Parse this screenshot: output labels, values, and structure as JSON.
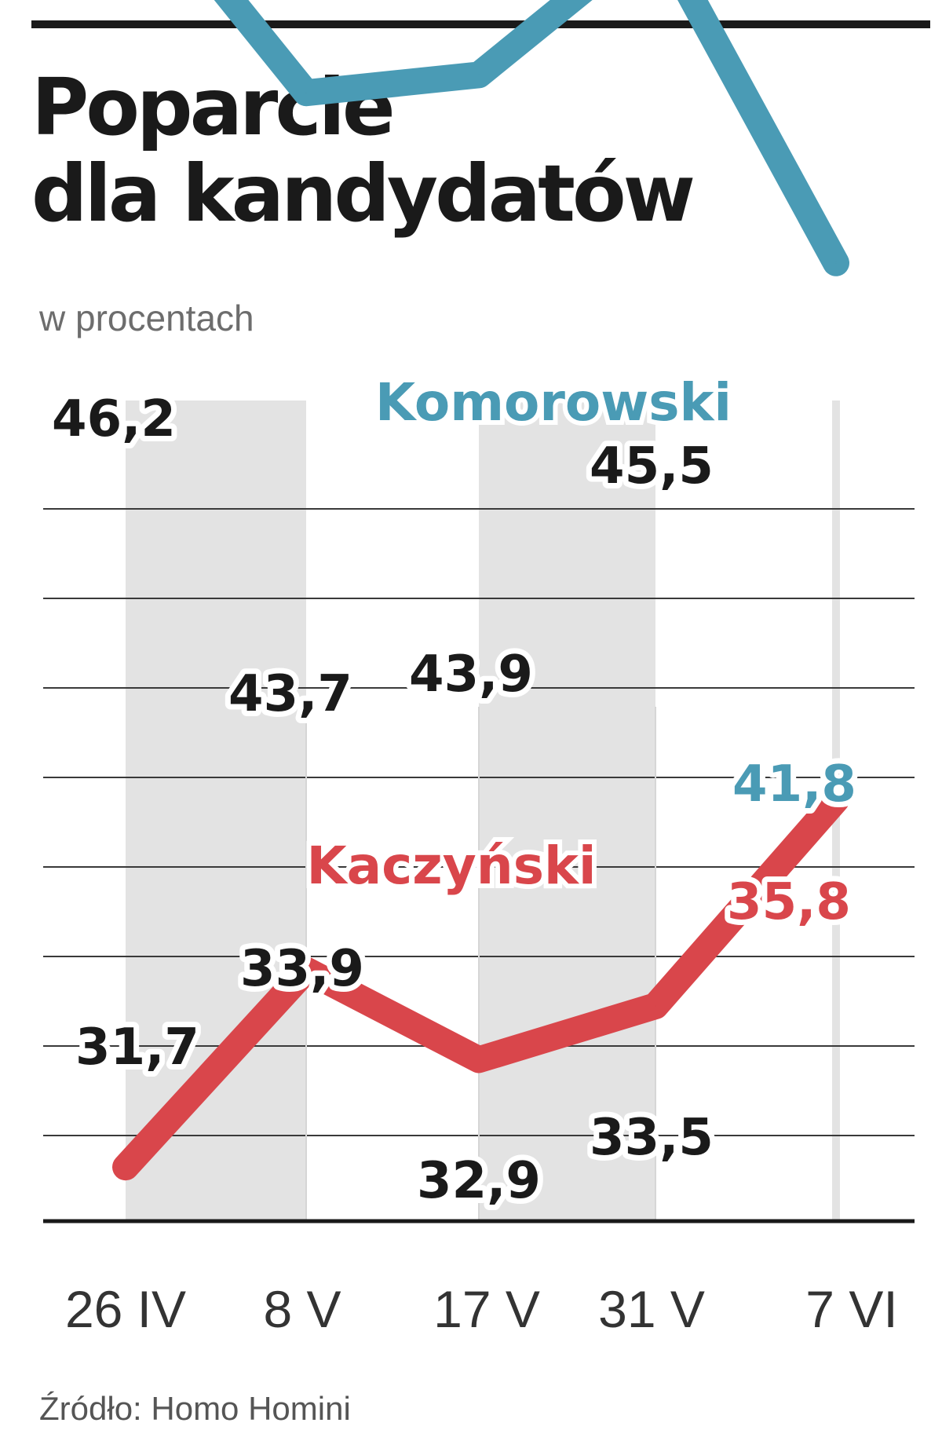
{
  "header": {
    "title_line1": "Poparcie",
    "title_line2": "dla kandydatów",
    "subtitle": "w procentach"
  },
  "footer": {
    "source": "Źródło: Homo Homini"
  },
  "colors": {
    "komorowski": "#4a9bb5",
    "kaczynski": "#d9464b",
    "text": "#1a1a1a",
    "band": "#e3e3e3",
    "grid": "#3a3a3a"
  },
  "chart_data": {
    "type": "line",
    "title": "Poparcie dla kandydatów",
    "subtitle": "w procentach",
    "categories": [
      "26 IV",
      "8 V",
      "17 V",
      "31 V",
      "7 VI"
    ],
    "series": [
      {
        "name": "Komorowski",
        "values": [
          46.2,
          43.7,
          43.9,
          45.5,
          41.8
        ]
      },
      {
        "name": "Kaczyński",
        "values": [
          31.7,
          33.9,
          32.9,
          33.5,
          35.8
        ]
      }
    ],
    "value_labels": {
      "Komorowski": [
        "46,2",
        "43,7",
        "43,9",
        "45,5",
        "41,8"
      ],
      "Kaczyński": [
        "31,7",
        "33,9",
        "32,9",
        "33,5",
        "35,8"
      ]
    },
    "grid": true,
    "legend": "labels-on-lines"
  }
}
